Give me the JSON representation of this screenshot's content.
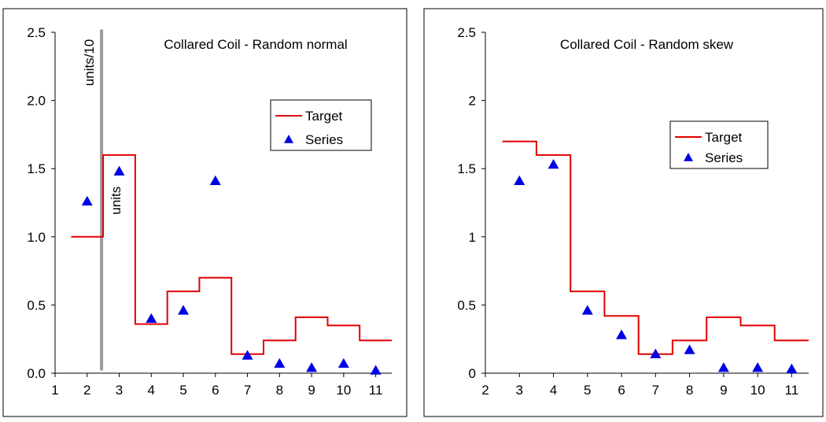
{
  "colors": {
    "target": "#e00000",
    "series": "#0000e6",
    "divider": "#999999",
    "axis": "#000000"
  },
  "chart_data": [
    {
      "type": "line",
      "title": "Collared Coil - Random normal",
      "xlabel": "",
      "ylabel": "",
      "xlim": [
        1,
        11
      ],
      "ylim": [
        0,
        2.5
      ],
      "x_ticks": [
        "1",
        "2",
        "3",
        "4",
        "5",
        "6",
        "7",
        "8",
        "9",
        "10",
        "11"
      ],
      "y_ticks": [
        "0.0",
        "0.5",
        "1.0",
        "1.5",
        "2.0",
        "2.5"
      ],
      "legend": {
        "placement": "upper-right",
        "entries": [
          "Target",
          "Series"
        ]
      },
      "annotations": [
        "units/10",
        "units"
      ],
      "series": [
        {
          "name": "Target",
          "style": "step",
          "x": [
            2,
            3,
            4,
            5,
            6,
            7,
            8,
            9,
            10,
            11
          ],
          "values": [
            1.0,
            1.6,
            0.36,
            0.6,
            0.7,
            0.14,
            0.24,
            0.41,
            0.35,
            0.24
          ]
        },
        {
          "name": "Series",
          "style": "marker",
          "x": [
            2,
            3,
            4,
            5,
            6,
            7,
            8,
            9,
            10,
            11
          ],
          "values": [
            1.26,
            1.48,
            0.4,
            0.46,
            1.41,
            0.13,
            0.07,
            0.04,
            0.07,
            0.02
          ]
        }
      ]
    },
    {
      "type": "line",
      "title": "Collared Coil - Random skew",
      "xlabel": "",
      "ylabel": "",
      "xlim": [
        2,
        11
      ],
      "ylim": [
        0,
        2.5
      ],
      "x_ticks": [
        "2",
        "3",
        "4",
        "5",
        "6",
        "7",
        "8",
        "9",
        "10",
        "11"
      ],
      "y_ticks": [
        "0",
        "0.5",
        "1",
        "1.5",
        "2",
        "2.5"
      ],
      "legend": {
        "placement": "upper-right",
        "entries": [
          "Target",
          "Series"
        ]
      },
      "series": [
        {
          "name": "Target",
          "style": "step",
          "x": [
            3,
            4,
            5,
            6,
            7,
            8,
            9,
            10,
            11
          ],
          "values": [
            1.7,
            1.6,
            0.6,
            0.42,
            0.14,
            0.24,
            0.41,
            0.35,
            0.24
          ]
        },
        {
          "name": "Series",
          "style": "marker",
          "x": [
            3,
            4,
            5,
            6,
            7,
            8,
            9,
            10,
            11
          ],
          "values": [
            1.41,
            1.53,
            0.46,
            0.28,
            0.14,
            0.17,
            0.04,
            0.04,
            0.03
          ]
        }
      ]
    }
  ]
}
